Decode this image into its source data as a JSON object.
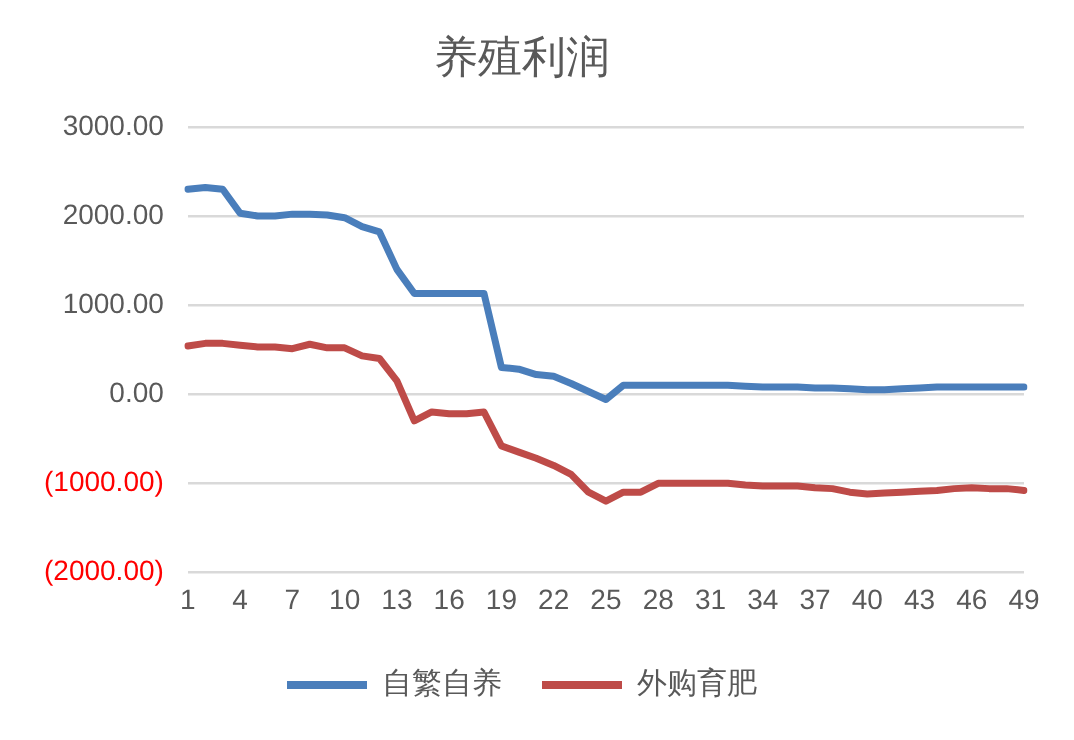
{
  "chart_data": {
    "type": "line",
    "title": "养殖利润",
    "categories": [
      "1",
      null,
      null,
      "4",
      null,
      null,
      "7",
      null,
      null,
      "10",
      null,
      null,
      "13",
      null,
      null,
      "16",
      null,
      null,
      "19",
      null,
      null,
      "22",
      null,
      null,
      "25",
      null,
      null,
      "28",
      null,
      null,
      "31",
      null,
      null,
      "34",
      null,
      null,
      "37",
      null,
      null,
      "40",
      null,
      null,
      "43",
      null,
      null,
      "46",
      null,
      null,
      "49"
    ],
    "series": [
      {
        "name": "自繁自养",
        "color": "#4a7ebb",
        "values": [
          2300,
          2320,
          2300,
          2030,
          2000,
          2000,
          2020,
          2020,
          2010,
          1980,
          1880,
          1820,
          1400,
          1130,
          1130,
          1130,
          1130,
          1130,
          300,
          280,
          220,
          200,
          120,
          30,
          -60,
          100,
          100,
          100,
          100,
          100,
          100,
          100,
          90,
          80,
          80,
          80,
          70,
          70,
          60,
          50,
          50,
          60,
          70,
          80,
          80,
          80,
          80,
          80,
          80
        ]
      },
      {
        "name": "外购育肥",
        "color": "#be4b48",
        "values": [
          540,
          570,
          570,
          550,
          530,
          530,
          510,
          560,
          520,
          520,
          430,
          400,
          150,
          -300,
          -200,
          -220,
          -220,
          -200,
          -580,
          -650,
          -720,
          -800,
          -900,
          -1100,
          -1200,
          -1100,
          -1100,
          -1000,
          -1000,
          -1000,
          -1000,
          -1000,
          -1020,
          -1030,
          -1030,
          -1030,
          -1050,
          -1060,
          -1100,
          -1120,
          -1110,
          -1100,
          -1090,
          -1080,
          -1060,
          -1050,
          -1060,
          -1060,
          -1080
        ]
      }
    ],
    "ylim": [
      -2000,
      3000
    ],
    "yticks": [
      {
        "value": -2000,
        "label": "(2000.00)"
      },
      {
        "value": -1000,
        "label": "(1000.00)"
      },
      {
        "value": 0,
        "label": "0.00"
      },
      {
        "value": 1000,
        "label": "1000.00"
      },
      {
        "value": 2000,
        "label": "2000.00"
      },
      {
        "value": 3000,
        "label": "3000.00"
      }
    ],
    "grid": "y",
    "legend": "bottom",
    "marker": "none",
    "line_style": "solid"
  }
}
